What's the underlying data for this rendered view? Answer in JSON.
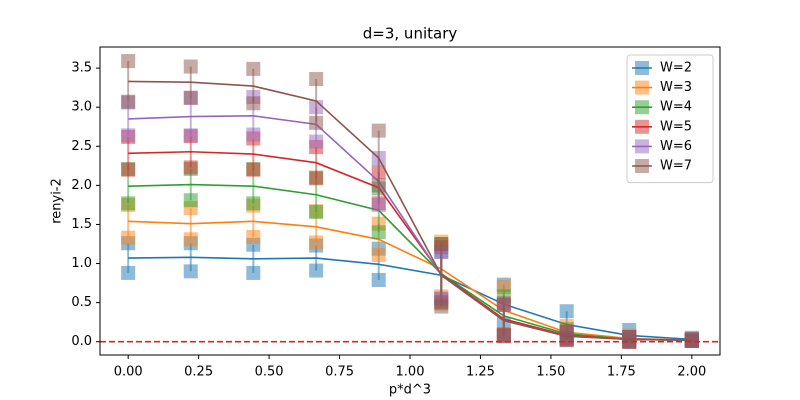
{
  "chart_data": {
    "type": "errorbar_line",
    "title": "d=3, unitary",
    "xlabel": "p*d^3",
    "ylabel": "renyi-2",
    "x": [
      0,
      0.222,
      0.444,
      0.667,
      0.889,
      1.111,
      1.333,
      1.556,
      1.778,
      2.0
    ],
    "xlim": [
      -0.1,
      2.1
    ],
    "xticks": [
      {
        "value": 0,
        "label": "0.00"
      },
      {
        "value": 0.25,
        "label": "0.25"
      },
      {
        "value": 0.5,
        "label": "0.50"
      },
      {
        "value": 0.75,
        "label": "0.75"
      },
      {
        "value": 1,
        "label": "1.00"
      },
      {
        "value": 1.25,
        "label": "1.25"
      },
      {
        "value": 1.5,
        "label": "1.50"
      },
      {
        "value": 1.75,
        "label": "1.75"
      },
      {
        "value": 2,
        "label": "2.00"
      }
    ],
    "ylim": [
      -0.17,
      3.77
    ],
    "yticks": [
      {
        "value": 0,
        "label": "0.0"
      },
      {
        "value": 0.5,
        "label": "0.5"
      },
      {
        "value": 1,
        "label": "1.0"
      },
      {
        "value": 1.5,
        "label": "1.5"
      },
      {
        "value": 2,
        "label": "2.0"
      },
      {
        "value": 2.5,
        "label": "2.5"
      },
      {
        "value": 3,
        "label": "3.0"
      },
      {
        "value": 3.5,
        "label": "3.5"
      }
    ],
    "hline": {
      "value": 0,
      "color": "#d62728"
    },
    "legend": "upper right",
    "series": [
      {
        "name": "W=2",
        "color": "#1f77b4",
        "values": [
          1.07,
          1.08,
          1.06,
          1.07,
          0.99,
          0.85,
          0.48,
          0.22,
          0.08,
          0.03
        ],
        "errors": [
          0.19,
          0.18,
          0.18,
          0.16,
          0.2,
          0.3,
          0.25,
          0.17,
          0.07,
          0.02
        ]
      },
      {
        "name": "W=3",
        "color": "#ff7f0e",
        "values": [
          1.54,
          1.51,
          1.54,
          1.47,
          1.31,
          0.93,
          0.4,
          0.12,
          0.04,
          0.02
        ],
        "errors": [
          0.21,
          0.2,
          0.2,
          0.2,
          0.2,
          0.35,
          0.3,
          0.08,
          0.04,
          0.01
        ]
      },
      {
        "name": "W=4",
        "color": "#2ca02c",
        "values": [
          1.99,
          2.01,
          1.99,
          1.88,
          1.68,
          0.87,
          0.33,
          0.1,
          0.03,
          0.02
        ],
        "errors": [
          0.22,
          0.2,
          0.22,
          0.22,
          0.28,
          0.38,
          0.25,
          0.06,
          0.03,
          0.01
        ]
      },
      {
        "name": "W=5",
        "color": "#d62728",
        "values": [
          2.41,
          2.43,
          2.4,
          2.29,
          1.97,
          0.86,
          0.29,
          0.08,
          0.03,
          0.02
        ],
        "errors": [
          0.21,
          0.2,
          0.2,
          0.2,
          0.2,
          0.35,
          0.2,
          0.05,
          0.03,
          0.01
        ]
      },
      {
        "name": "W=6",
        "color": "#9467bd",
        "values": [
          2.85,
          2.88,
          2.89,
          2.78,
          2.05,
          0.85,
          0.27,
          0.07,
          0.03,
          0.02
        ],
        "errors": [
          0.21,
          0.24,
          0.24,
          0.22,
          0.3,
          0.3,
          0.2,
          0.05,
          0.03,
          0.01
        ]
      },
      {
        "name": "W=7",
        "color": "#8c564b",
        "values": [
          3.33,
          3.32,
          3.27,
          3.08,
          2.35,
          0.85,
          0.27,
          0.07,
          0.03,
          0.02
        ],
        "errors": [
          0.26,
          0.2,
          0.22,
          0.28,
          0.35,
          0.4,
          0.2,
          0.05,
          0.03,
          0.01
        ]
      }
    ]
  }
}
